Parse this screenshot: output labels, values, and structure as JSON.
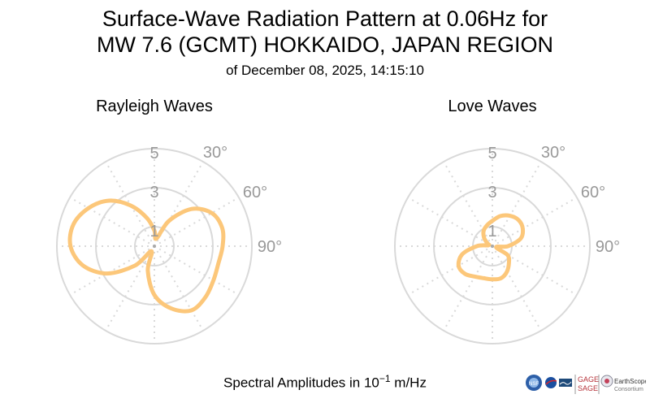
{
  "title": {
    "line1": "Surface-Wave Radiation Pattern at 0.06Hz for",
    "line2": "MW 7.6 (GCMT) HOKKAIDO, JAPAN REGION",
    "line3": "of December 08, 2025, 14:15:10"
  },
  "footer": {
    "prefix": "Spectral Amplitudes in ",
    "base": "10",
    "exponent": "−1",
    "unit": " m/Hz"
  },
  "logos": {
    "nsf": "NSF",
    "gage": "GAGE",
    "sage": "SAGE",
    "earthscope": "EarthScope",
    "consortium": "Consortium"
  },
  "colors": {
    "pattern": "#fcc77a",
    "grid": "#d9d9d9",
    "tick_label": "#999999"
  },
  "chart_data": [
    {
      "type": "polar",
      "title": "Rayleigh Waves",
      "radial_ticks": [
        1,
        3,
        5
      ],
      "radial_tick_labels": [
        "1",
        "3",
        "5"
      ],
      "rmax": 5,
      "angle_tick_labels": [
        "30°",
        "60°",
        "90°"
      ],
      "angle_ticks_deg": [
        30,
        60,
        90
      ],
      "grid": true,
      "series": [
        {
          "azimuth_deg": [
            0,
            15,
            30,
            45,
            60,
            75,
            90,
            105,
            120,
            135,
            150,
            165,
            180,
            195,
            210,
            225,
            240,
            255,
            270,
            285,
            300,
            315,
            330,
            345
          ],
          "amplitude": [
            0.8,
            0.4,
            1.5,
            2.7,
            3.4,
            3.6,
            3.5,
            3.4,
            3.5,
            3.7,
            3.8,
            3.3,
            2.5,
            1.3,
            0.3,
            1.4,
            2.8,
            3.8,
            4.3,
            4.3,
            3.9,
            3.3,
            2.4,
            1.5
          ]
        }
      ]
    },
    {
      "type": "polar",
      "title": "Love Waves",
      "radial_ticks": [
        1,
        3,
        5
      ],
      "radial_tick_labels": [
        "1",
        "3",
        "5"
      ],
      "rmax": 5,
      "angle_tick_labels": [
        "30°",
        "60°",
        "90°"
      ],
      "angle_ticks_deg": [
        30,
        60,
        90
      ],
      "grid": true,
      "series": [
        {
          "azimuth_deg": [
            0,
            15,
            30,
            45,
            60,
            75,
            90,
            105,
            120,
            135,
            150,
            165,
            180,
            195,
            210,
            225,
            240,
            255,
            270,
            285,
            300,
            315,
            330,
            345
          ],
          "amplitude": [
            1.3,
            1.6,
            1.8,
            1.9,
            1.8,
            1.5,
            0.8,
            0.2,
            0.9,
            1.2,
            1.5,
            1.7,
            1.7,
            1.7,
            1.8,
            2.0,
            2.0,
            1.6,
            0.8,
            0.2,
            0.3,
            0.6,
            0.9,
            1.1
          ]
        }
      ]
    }
  ]
}
